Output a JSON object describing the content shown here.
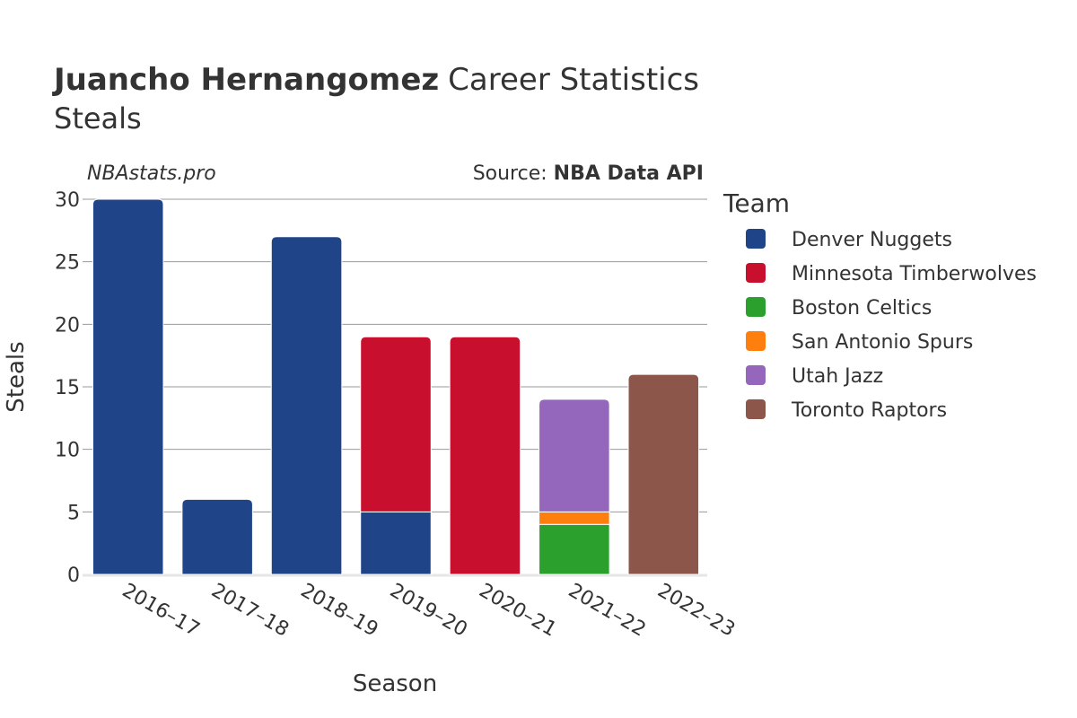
{
  "header": {
    "title_bold": "Juancho Hernangomez",
    "title_rest": "Career Statistics",
    "subtitle": "Steals",
    "watermark": "NBAstats.pro",
    "source_prefix": "Source: ",
    "source_bold": "NBA Data API"
  },
  "chart_data": {
    "type": "bar",
    "stacked": true,
    "title": "Juancho Hernangomez Career Statistics",
    "subtitle": "Steals",
    "xlabel": "Season",
    "ylabel": "Steals",
    "ylim": [
      0,
      30
    ],
    "yticks": [
      0,
      5,
      10,
      15,
      20,
      25,
      30
    ],
    "grid": true,
    "legend_title": "Team",
    "legend_position": "right",
    "categories": [
      "2016–17",
      "2017–18",
      "2018–19",
      "2019–20",
      "2020–21",
      "2021–22",
      "2022–23"
    ],
    "series": [
      {
        "name": "Denver Nuggets",
        "color": "#1f4488",
        "values": [
          30,
          6,
          27,
          5,
          0,
          0,
          0
        ]
      },
      {
        "name": "Minnesota Timberwolves",
        "color": "#c8102e",
        "values": [
          0,
          0,
          0,
          14,
          19,
          0,
          0
        ]
      },
      {
        "name": "Boston Celtics",
        "color": "#2ca02c",
        "values": [
          0,
          0,
          0,
          0,
          0,
          4,
          0
        ]
      },
      {
        "name": "San Antonio Spurs",
        "color": "#ff7f0e",
        "values": [
          0,
          0,
          0,
          0,
          0,
          1,
          0
        ]
      },
      {
        "name": "Utah Jazz",
        "color": "#9467bd",
        "values": [
          0,
          0,
          0,
          0,
          0,
          9,
          0
        ]
      },
      {
        "name": "Toronto Raptors",
        "color": "#8c564b",
        "values": [
          0,
          0,
          0,
          0,
          0,
          0,
          16
        ]
      }
    ]
  }
}
